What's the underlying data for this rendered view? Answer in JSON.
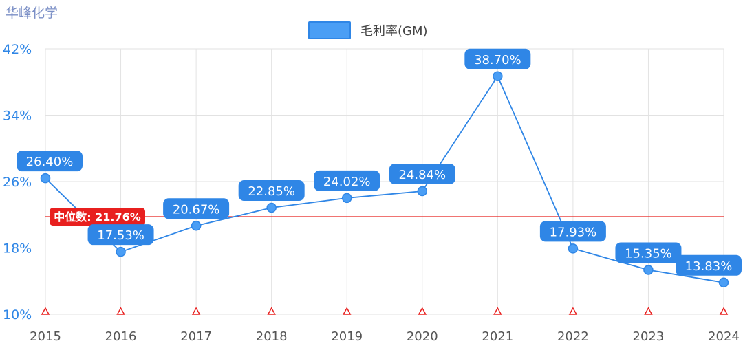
{
  "header": {
    "company": "华峰化学"
  },
  "chart_data": {
    "type": "line",
    "title": "",
    "xlabel": "",
    "ylabel": "",
    "categories": [
      "2015",
      "2016",
      "2017",
      "2018",
      "2019",
      "2020",
      "2021",
      "2022",
      "2023",
      "2024"
    ],
    "series": [
      {
        "name": "毛利率(GM)",
        "values": [
          26.4,
          17.53,
          20.67,
          22.85,
          24.02,
          24.84,
          38.7,
          17.93,
          15.35,
          13.83
        ],
        "labels": [
          "26.40%",
          "17.53%",
          "20.67%",
          "22.85%",
          "24.02%",
          "24.84%",
          "38.70%",
          "17.93%",
          "15.35%",
          "13.83%"
        ],
        "color": "#2f86e6"
      }
    ],
    "ylim": [
      10,
      42
    ],
    "yticks": [
      "10%",
      "18%",
      "26%",
      "34%",
      "42%"
    ],
    "median": {
      "value": 21.76,
      "label": "中位数: 21.76%",
      "color": "#e8201f"
    },
    "grid": true,
    "legend": "top-center",
    "marker_color": "#e8201f"
  }
}
